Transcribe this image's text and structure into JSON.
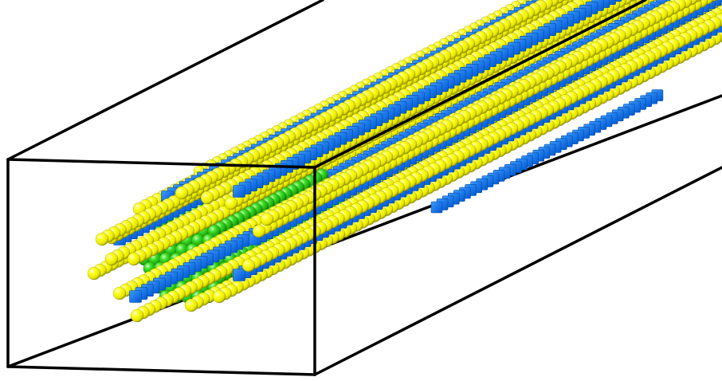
{
  "scene": {
    "background": "#ffffff",
    "frame_color": "#000000",
    "particle_types": [
      {
        "name": "green-core-sphere",
        "color": "#22cc11"
      },
      {
        "name": "yellow-chain-sphere",
        "color": "#f2f200"
      },
      {
        "name": "blue-cube",
        "color": "#0a6ef0"
      }
    ]
  }
}
